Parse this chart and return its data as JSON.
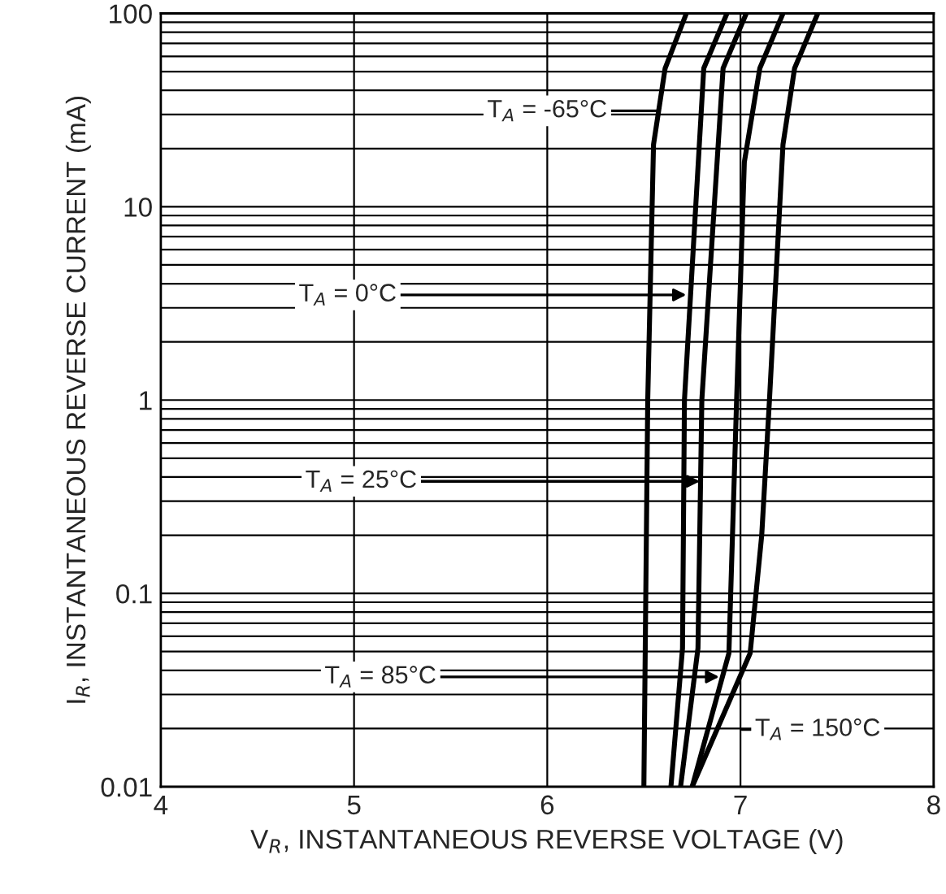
{
  "chart_data": {
    "type": "line",
    "xlabel": "V$_{R}$, INSTANTANEOUS REVERSE VOLTAGE (V)",
    "ylabel": "I$_{R}$, INSTANTANEOUS REVERSE CURRENT (mA)",
    "log": "y",
    "grid": true,
    "legend": false,
    "marker": "none",
    "line_style": "solid",
    "xlim": [
      4,
      8
    ],
    "xticks": [
      4,
      5,
      6,
      7,
      8
    ],
    "ylim": [
      0.01,
      100
    ],
    "yticks": [
      {
        "value": 0.01,
        "label": "0.01"
      },
      {
        "value": 0.02,
        "label": null
      },
      {
        "value": 0.03,
        "label": null
      },
      {
        "value": 0.04,
        "label": null
      },
      {
        "value": 0.05,
        "label": null
      },
      {
        "value": 0.06,
        "label": null
      },
      {
        "value": 0.07,
        "label": null
      },
      {
        "value": 0.08,
        "label": null
      },
      {
        "value": 0.09,
        "label": null
      },
      {
        "value": 0.1,
        "label": "0.1"
      },
      {
        "value": 0.2,
        "label": null
      },
      {
        "value": 0.3,
        "label": null
      },
      {
        "value": 0.4,
        "label": null
      },
      {
        "value": 0.5,
        "label": null
      },
      {
        "value": 0.6,
        "label": null
      },
      {
        "value": 0.7,
        "label": null
      },
      {
        "value": 0.8,
        "label": null
      },
      {
        "value": 0.9,
        "label": null
      },
      {
        "value": 1,
        "label": "1"
      },
      {
        "value": 2,
        "label": null
      },
      {
        "value": 3,
        "label": null
      },
      {
        "value": 4,
        "label": null
      },
      {
        "value": 5,
        "label": null
      },
      {
        "value": 6,
        "label": null
      },
      {
        "value": 7,
        "label": null
      },
      {
        "value": 8,
        "label": null
      },
      {
        "value": 9,
        "label": null
      },
      {
        "value": 10,
        "label": "10"
      },
      {
        "value": 20,
        "label": null
      },
      {
        "value": 30,
        "label": null
      },
      {
        "value": 40,
        "label": null
      },
      {
        "value": 50,
        "label": null
      },
      {
        "value": 60,
        "label": null
      },
      {
        "value": 70,
        "label": null
      },
      {
        "value": 80,
        "label": null
      },
      {
        "value": 90,
        "label": null
      },
      {
        "value": 100,
        "label": "100"
      }
    ],
    "series": [
      {
        "color": "#000000",
        "x": [
          6.5,
          6.52,
          6.55,
          6.61,
          6.72
        ],
        "values": [
          0.01,
          1,
          21,
          52,
          100
        ]
      },
      {
        "color": "#000000",
        "x": [
          6.64,
          6.7,
          6.71,
          6.81,
          6.93
        ],
        "values": [
          0.01,
          0.052,
          1,
          52,
          100
        ]
      },
      {
        "color": "#000000",
        "x": [
          6.69,
          6.78,
          6.8,
          6.91,
          7.03
        ],
        "values": [
          0.01,
          0.052,
          1,
          52,
          100
        ]
      },
      {
        "color": "#000000",
        "x": [
          6.75,
          6.94,
          6.98,
          7.02,
          7.1,
          7.22
        ],
        "values": [
          0.01,
          0.049,
          1,
          17,
          52,
          100
        ]
      },
      {
        "color": "#000000",
        "x": [
          6.75,
          7.05,
          7.11,
          7.15,
          7.22,
          7.28,
          7.4
        ],
        "values": [
          0.01,
          0.049,
          0.2,
          1,
          21,
          52,
          100
        ]
      }
    ],
    "annotations": [
      "T$_{A}$ = -65°C",
      {
        "text": "T$_{A}$ = 0°C",
        "x": 6.72,
        "y": 3.5
      },
      {
        "text": "T$_{A}$ = 25°C",
        "x": 6.79,
        "y": 0.38
      },
      {
        "text": "T$_{A}$ = 85°C",
        "x": 6.89,
        "y": 0.037
      },
      "T$_{A}$ = 150°C"
    ]
  }
}
